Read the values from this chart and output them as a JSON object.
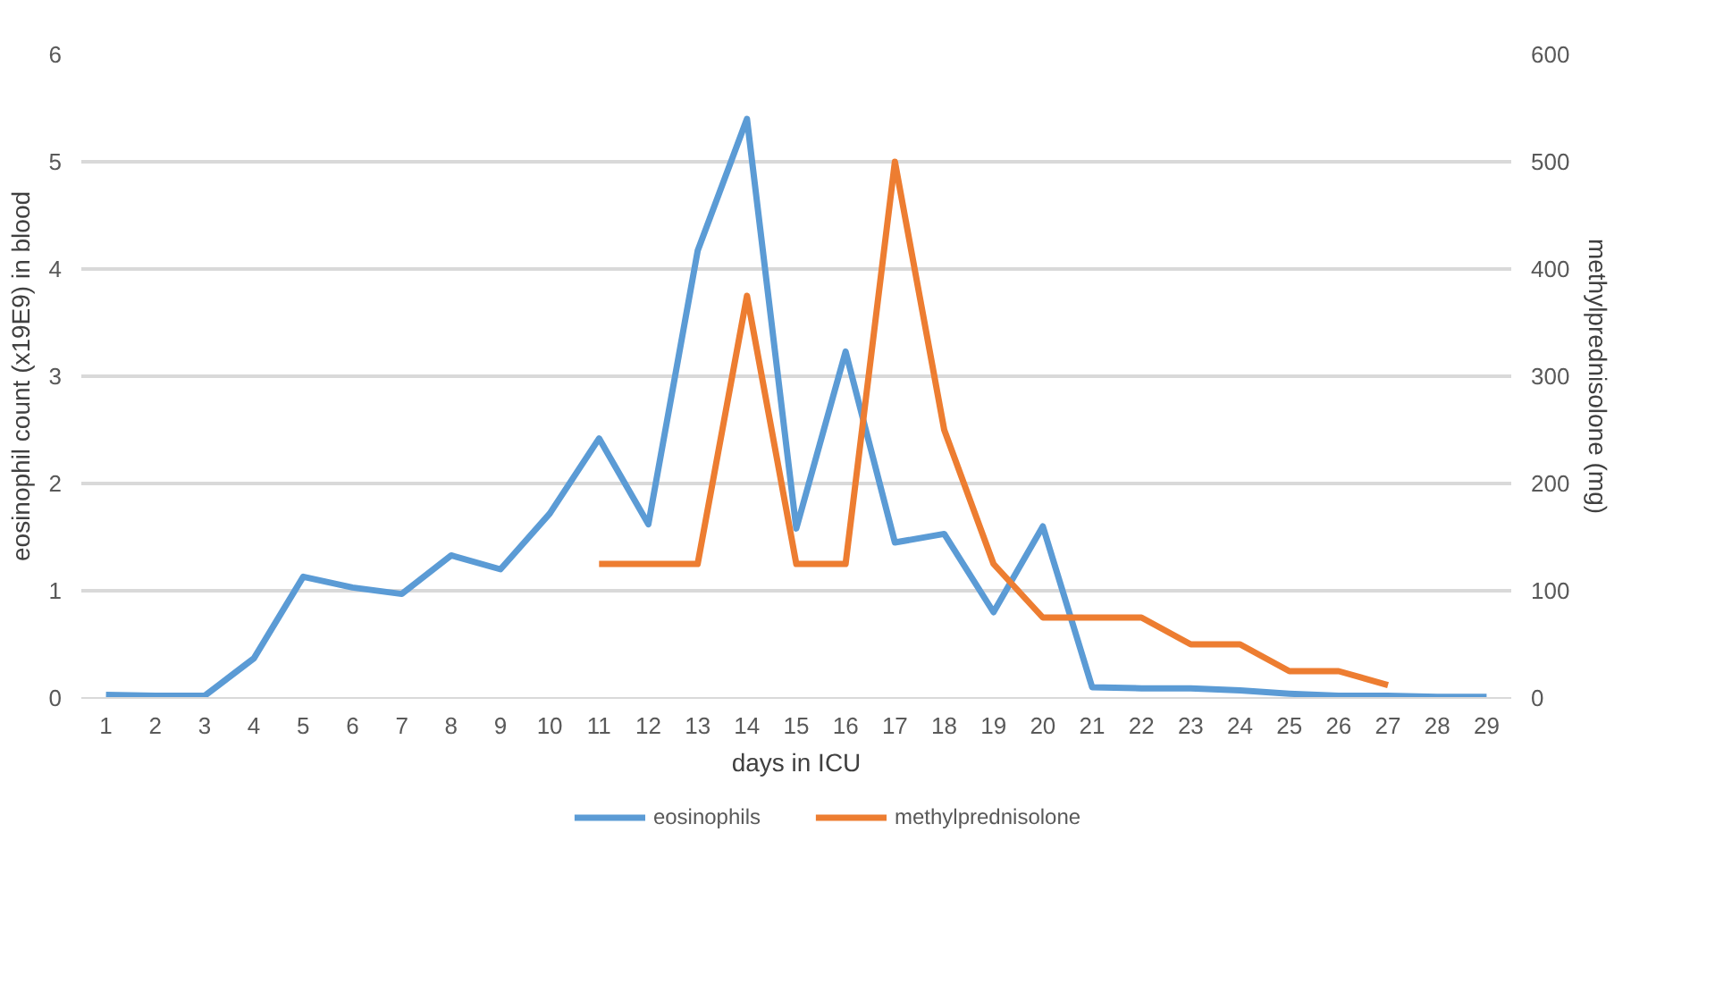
{
  "chart_data": {
    "type": "line",
    "xlabel": "days in ICU",
    "ylabel": "eosinophil count (x19E9) in blood",
    "y2label": "methylprednisolone (mg)",
    "x": [
      1,
      2,
      3,
      4,
      5,
      6,
      7,
      8,
      9,
      10,
      11,
      12,
      13,
      14,
      15,
      16,
      17,
      18,
      19,
      20,
      21,
      22,
      23,
      24,
      25,
      26,
      27,
      28,
      29
    ],
    "xlim": [
      0.5,
      29.5
    ],
    "xticks": [
      1,
      2,
      3,
      4,
      5,
      6,
      7,
      8,
      9,
      10,
      11,
      12,
      13,
      14,
      15,
      16,
      17,
      18,
      19,
      20,
      21,
      22,
      23,
      24,
      25,
      26,
      27,
      28,
      29
    ],
    "ylim": [
      0,
      6
    ],
    "yticks": [
      0,
      1,
      2,
      3,
      4,
      5,
      6
    ],
    "y2lim": [
      0,
      600
    ],
    "y2ticks": [
      0,
      100,
      200,
      300,
      400,
      500,
      600
    ],
    "series": [
      {
        "name": "eosinophils",
        "color": "#5b9bd5",
        "values": [
          0.03,
          0.02,
          0.02,
          0.37,
          1.13,
          1.03,
          0.97,
          1.33,
          1.2,
          1.72,
          2.42,
          1.62,
          4.17,
          5.4,
          1.58,
          3.23,
          1.45,
          1.53,
          0.8,
          1.6,
          0.1,
          0.09,
          0.09,
          0.07,
          0.04,
          0.02,
          0.02,
          0.01,
          0.01
        ]
      },
      {
        "name": "methylprednisolone",
        "color": "#ed7d31",
        "axis": "y2",
        "values": [
          null,
          null,
          null,
          null,
          null,
          null,
          null,
          null,
          null,
          null,
          125,
          125,
          125,
          375,
          125,
          125,
          500,
          250,
          125,
          75,
          75,
          75,
          50,
          50,
          25,
          25,
          12,
          null,
          null
        ]
      }
    ],
    "grid": "y",
    "legend": "bottom",
    "marker": "none",
    "line_style": "solid"
  }
}
